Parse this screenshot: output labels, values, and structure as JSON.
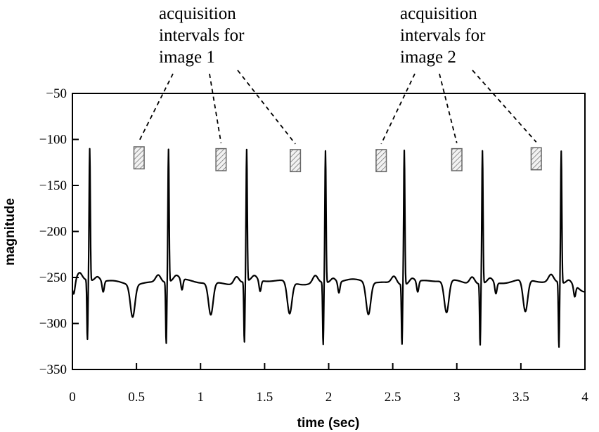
{
  "chart_data": {
    "type": "line",
    "title": "",
    "xlabel": "time (sec)",
    "ylabel": "magnitude",
    "xlim": [
      0,
      4
    ],
    "ylim": [
      -350,
      -50
    ],
    "xticks": [
      0,
      0.5,
      1,
      1.5,
      2,
      2.5,
      3,
      3.5,
      4
    ],
    "xtick_labels": [
      "0",
      "0.5",
      "1",
      "1.5",
      "2",
      "2.5",
      "3",
      "3.5",
      "4"
    ],
    "yticks": [
      -50,
      -100,
      -150,
      -200,
      -250,
      -300,
      -350
    ],
    "ytick_labels": [
      "−50",
      "−100",
      "−150",
      "−200",
      "−250",
      "−300",
      "−350"
    ],
    "grid": false,
    "legend": "none",
    "line_color": "#000000",
    "r_peaks": [
      {
        "t": 0.135,
        "peak": -112,
        "trough": -320
      },
      {
        "t": 0.75,
        "peak": -111,
        "trough": -322
      },
      {
        "t": 1.36,
        "peak": -112,
        "trough": -321
      },
      {
        "t": 1.975,
        "peak": -112,
        "trough": -323
      },
      {
        "t": 2.59,
        "peak": -109,
        "trough": -320
      },
      {
        "t": 3.2,
        "peak": -111,
        "trough": -322
      },
      {
        "t": 3.815,
        "peak": -112,
        "trough": -326
      }
    ],
    "baseline": -255,
    "t_wave_dip": -290,
    "acquisition_windows": [
      {
        "group": 1,
        "x_start": 0.48,
        "x_end": 0.56,
        "y_top": -108,
        "y_bottom": -132
      },
      {
        "group": 1,
        "x_start": 1.12,
        "x_end": 1.2,
        "y_top": -110,
        "y_bottom": -134
      },
      {
        "group": 1,
        "x_start": 1.7,
        "x_end": 1.78,
        "y_top": -111,
        "y_bottom": -135
      },
      {
        "group": 2,
        "x_start": 2.37,
        "x_end": 2.45,
        "y_top": -111,
        "y_bottom": -135
      },
      {
        "group": 2,
        "x_start": 2.96,
        "x_end": 3.04,
        "y_top": -110,
        "y_bottom": -134
      },
      {
        "group": 2,
        "x_start": 3.58,
        "x_end": 3.66,
        "y_top": -109,
        "y_bottom": -133
      }
    ],
    "annotations": [
      {
        "lines": [
          "acquisition",
          "intervals for",
          "image 1"
        ]
      },
      {
        "lines": [
          "acquisition",
          "intervals for",
          "image 2"
        ]
      }
    ],
    "window_fill": "#f2f2f2",
    "window_stroke": "#666666"
  }
}
